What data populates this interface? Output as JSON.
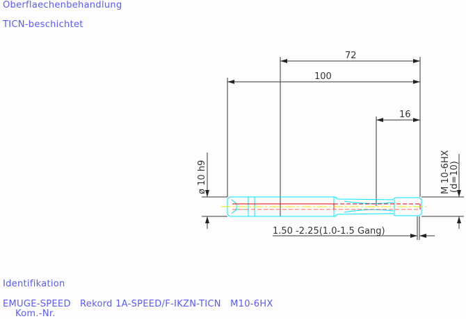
{
  "header": {
    "surface_label": "Oberflaechenbehandlung",
    "surface_value": "TICN-beschichtet"
  },
  "drawing": {
    "dim_total_length": "72",
    "dim_overall": "100",
    "dim_thread_length": "16",
    "dim_shank_diameter": "ø 10 h9",
    "dim_thread": "M 10-6HX",
    "dim_thread_d": "(d=10)",
    "dim_chamfer": "1.50 -2.25(1.0-1.5 Gang)",
    "colors": {
      "outline": "#00e5ff",
      "core": "#e00000",
      "center": "#e8e800",
      "dimension": "#333333",
      "text": "#5a5aff"
    }
  },
  "footer": {
    "ident_label": "Identifikation",
    "ident_value": "EMUGE-SPEED   Rekord 1A-SPEED/F-IKZN-TICN   M10-6HX",
    "kom_label": "Kom.-Nr."
  }
}
